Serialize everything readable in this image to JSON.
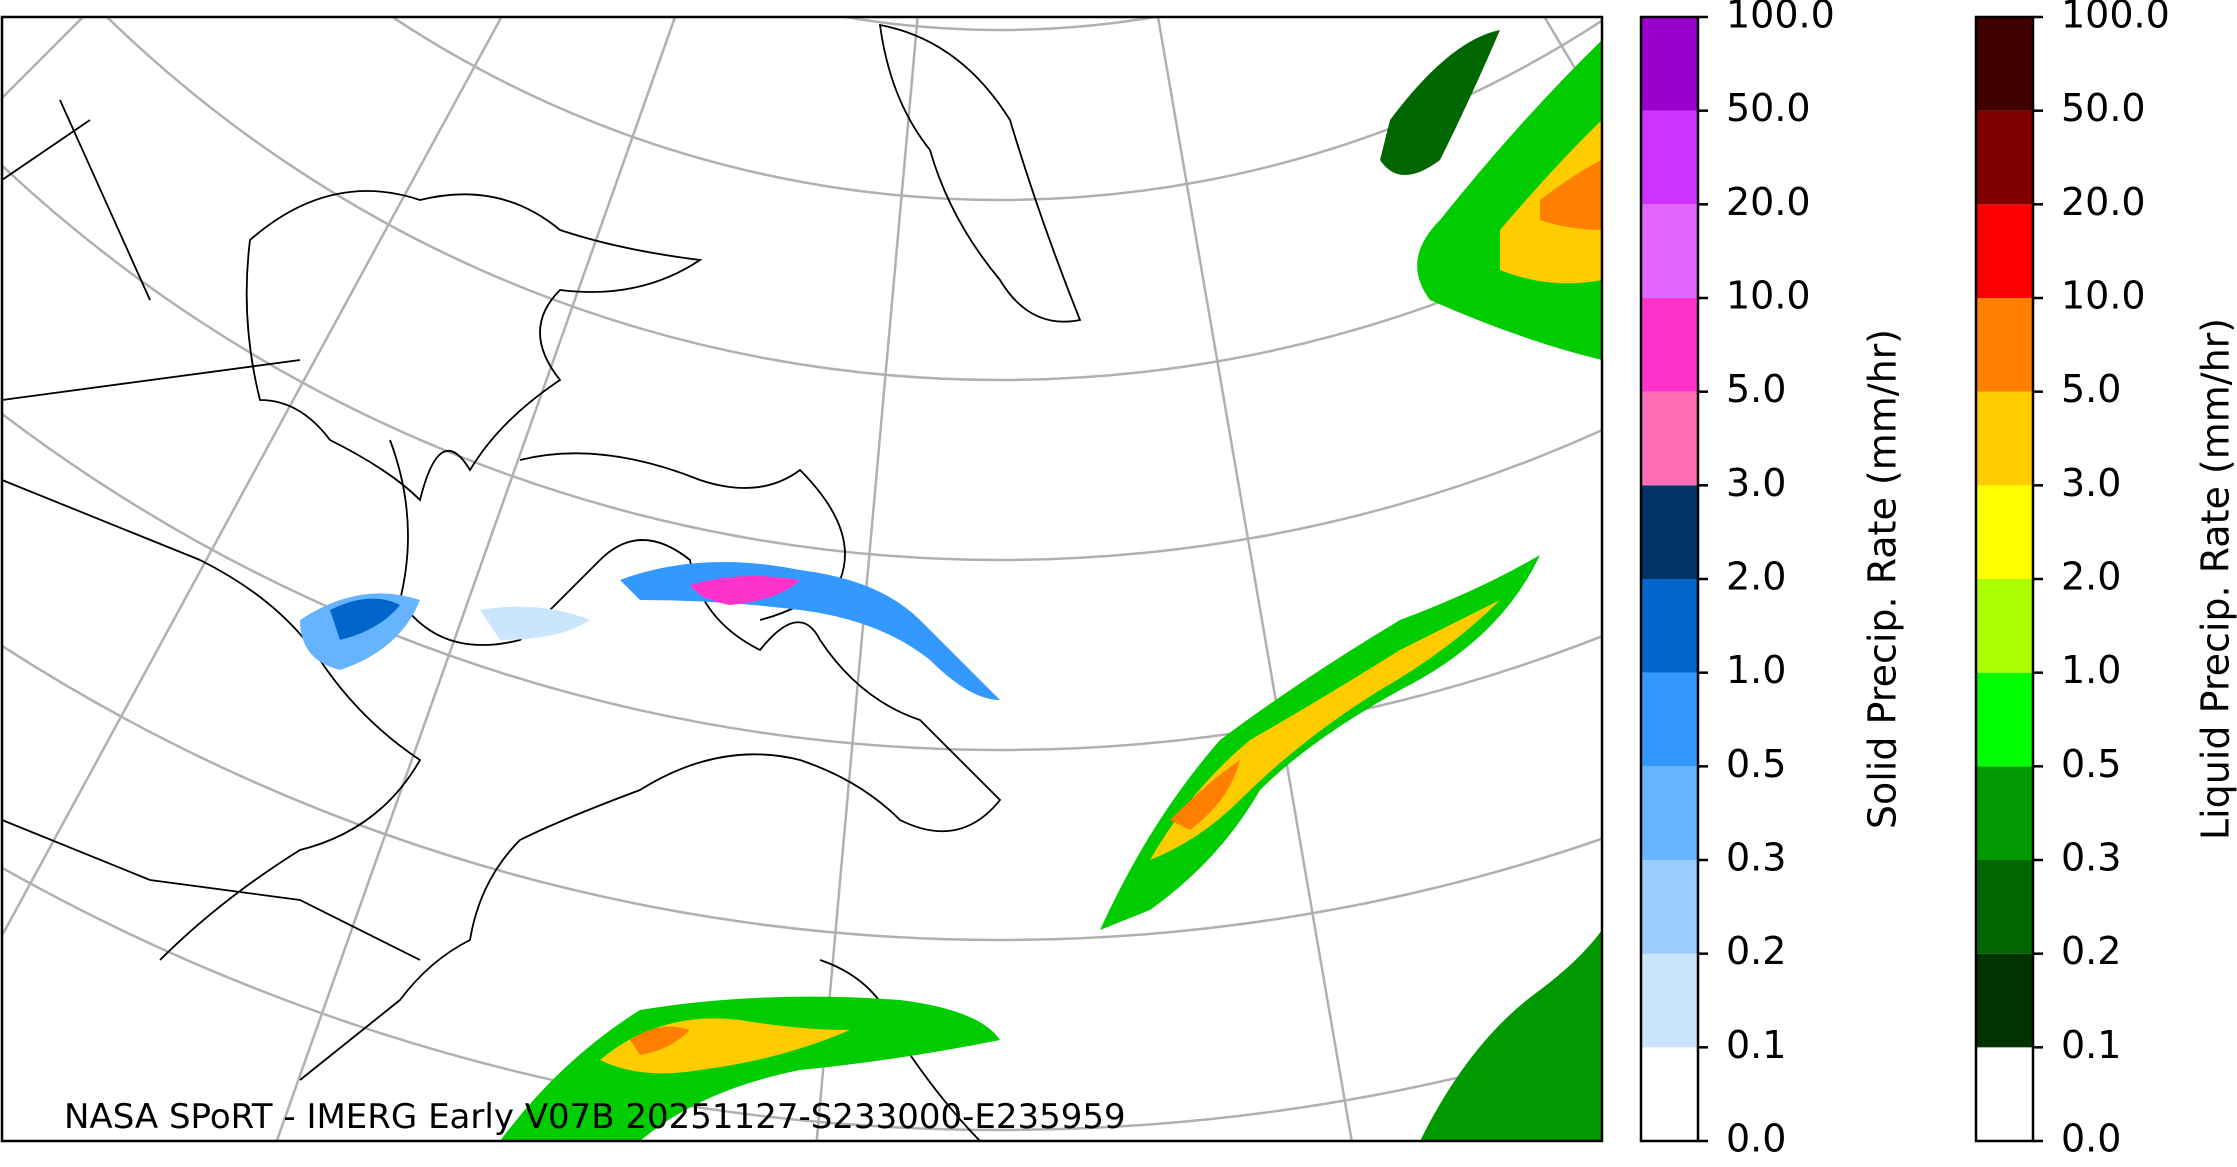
{
  "map": {
    "credit": "NASA SPoRT - IMERG Early V07B 20251127-S233000-E235959",
    "colorbars": [
      {
        "label": "Solid Precip. Rate (mm/hr)",
        "ticks": [
          {
            "value": 0,
            "label": "0.0"
          },
          0.1,
          0.2,
          0.3,
          0.5,
          {
            "value": 1,
            "label": "1.0"
          },
          {
            "value": 2,
            "label": "2.0"
          },
          {
            "value": 3,
            "label": "3.0"
          },
          {
            "value": 5,
            "label": "5.0"
          },
          {
            "value": 10,
            "label": "10.0"
          },
          {
            "value": 20,
            "label": "20.0"
          },
          {
            "value": 50,
            "label": "50.0"
          },
          {
            "value": 100,
            "label": "100.0"
          }
        ],
        "colors": [
          "#ffffff",
          "#cce5ff",
          "#99ccff",
          "#66b3ff",
          "#3399ff",
          "#0066cc",
          "#003366",
          "#ff6eb4",
          "#ff33cc",
          "#e066ff",
          "#cc33ff",
          "#9900cc"
        ]
      },
      {
        "label": "Liquid Precip. Rate (mm/hr)",
        "ticks": [
          {
            "value": 0,
            "label": "0.0"
          },
          0.1,
          0.2,
          0.3,
          0.5,
          {
            "value": 1,
            "label": "1.0"
          },
          {
            "value": 2,
            "label": "2.0"
          },
          {
            "value": 3,
            "label": "3.0"
          },
          {
            "value": 5,
            "label": "5.0"
          },
          {
            "value": 10,
            "label": "10.0"
          },
          {
            "value": 20,
            "label": "20.0"
          },
          {
            "value": 50,
            "label": "50.0"
          },
          {
            "value": 100,
            "label": "100.0"
          }
        ],
        "colors": [
          "#ffffff",
          "#003300",
          "#006600",
          "#009900",
          "#00ff00",
          "#aaff00",
          "#ffff00",
          "#ffcc00",
          "#ff8000",
          "#ff0000",
          "#800000",
          "#400000"
        ]
      }
    ]
  }
}
